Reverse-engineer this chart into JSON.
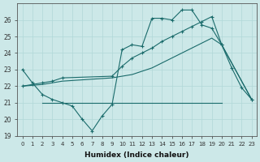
{
  "xlabel": "Humidex (Indice chaleur)",
  "bg_color": "#cce8e8",
  "grid_color": "#b0d8d8",
  "line_color": "#1a6b6b",
  "xlim": [
    -0.5,
    23.5
  ],
  "ylim": [
    19,
    27
  ],
  "xticks": [
    0,
    1,
    2,
    3,
    4,
    5,
    6,
    7,
    8,
    9,
    10,
    11,
    12,
    13,
    14,
    15,
    16,
    17,
    18,
    19,
    20,
    21,
    22,
    23
  ],
  "yticks": [
    19,
    20,
    21,
    22,
    23,
    24,
    25,
    26
  ],
  "series1_x": [
    0,
    1,
    2,
    3,
    4,
    5,
    6,
    7,
    8,
    9,
    10,
    11,
    12,
    13,
    14,
    15,
    16,
    17,
    18,
    19,
    20,
    21,
    22,
    23
  ],
  "series1_y": [
    23.0,
    22.2,
    21.5,
    21.2,
    21.0,
    20.8,
    20.0,
    19.3,
    20.2,
    20.9,
    24.2,
    24.5,
    24.4,
    26.1,
    26.1,
    26.0,
    26.6,
    26.6,
    25.7,
    25.5,
    24.5,
    23.1,
    21.9,
    21.2
  ],
  "series2_x": [
    0,
    1,
    2,
    3,
    4,
    9,
    10,
    11,
    12,
    13,
    14,
    15,
    16,
    17,
    18,
    19,
    20,
    23
  ],
  "series2_y": [
    22.0,
    22.1,
    22.2,
    22.3,
    22.5,
    22.6,
    23.2,
    23.7,
    24.0,
    24.3,
    24.7,
    25.0,
    25.3,
    25.6,
    25.9,
    26.2,
    24.5,
    21.2
  ],
  "series3_x": [
    2,
    20
  ],
  "series3_y": [
    21.0,
    21.0
  ],
  "series4_x": [
    0,
    1,
    2,
    3,
    4,
    9,
    10,
    11,
    12,
    13,
    14,
    15,
    16,
    17,
    18,
    19,
    20,
    23
  ],
  "series4_y": [
    22.0,
    22.05,
    22.1,
    22.2,
    22.3,
    22.5,
    22.6,
    22.7,
    22.9,
    23.1,
    23.4,
    23.7,
    24.0,
    24.3,
    24.6,
    24.9,
    24.5,
    21.2
  ]
}
